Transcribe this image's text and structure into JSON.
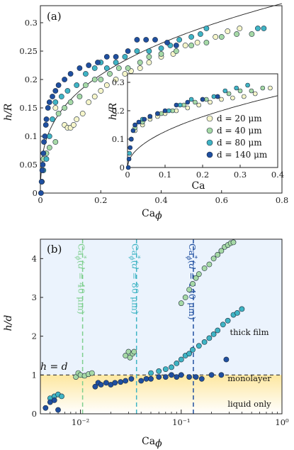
{
  "chart_data": [
    {
      "panel_label": "(a)",
      "type": "scatter",
      "xlabel": "Ca",
      "xlabel_subscript": "ϕ",
      "ylabel": "h/R",
      "xlim": [
        0,
        0.8
      ],
      "ylim": [
        0,
        0.33
      ],
      "xticks": [
        "0",
        "0.2",
        "0.4",
        "0.6",
        "0.8"
      ],
      "yticks": [
        "0",
        "0.05",
        "0.1",
        "0.15",
        "0.2",
        "0.25",
        "0.3"
      ],
      "fit_curve": {
        "type": "power",
        "a": 0.36,
        "b": 0.34
      },
      "series": [
        {
          "name": "d = 20 μm",
          "color": "#f6f5c9",
          "points": [
            [
              0.05,
              0.15
            ],
            [
              0.08,
              0.12
            ],
            [
              0.09,
              0.115
            ],
            [
              0.1,
              0.115
            ],
            [
              0.11,
              0.12
            ],
            [
              0.12,
              0.13
            ],
            [
              0.14,
              0.14
            ],
            [
              0.16,
              0.16
            ],
            [
              0.18,
              0.17
            ],
            [
              0.2,
              0.18
            ],
            [
              0.22,
              0.19
            ],
            [
              0.25,
              0.2
            ],
            [
              0.28,
              0.21
            ],
            [
              0.3,
              0.215
            ],
            [
              0.33,
              0.22
            ],
            [
              0.36,
              0.23
            ],
            [
              0.4,
              0.24
            ],
            [
              0.44,
              0.245
            ],
            [
              0.48,
              0.26
            ],
            [
              0.52,
              0.265
            ],
            [
              0.58,
              0.275
            ],
            [
              0.62,
              0.285
            ],
            [
              0.66,
              0.29
            ]
          ]
        },
        {
          "name": "d = 40 μm",
          "color": "#a6d9a6",
          "points": [
            [
              0.01,
              0.06
            ],
            [
              0.02,
              0.07
            ],
            [
              0.03,
              0.08
            ],
            [
              0.05,
              0.09
            ],
            [
              0.06,
              0.14
            ],
            [
              0.08,
              0.15
            ],
            [
              0.1,
              0.16
            ],
            [
              0.13,
              0.17
            ],
            [
              0.15,
              0.19
            ],
            [
              0.18,
              0.2
            ],
            [
              0.2,
              0.2
            ],
            [
              0.23,
              0.21
            ],
            [
              0.26,
              0.22
            ],
            [
              0.29,
              0.22
            ],
            [
              0.31,
              0.12
            ],
            [
              0.33,
              0.23
            ],
            [
              0.36,
              0.24
            ],
            [
              0.4,
              0.245
            ],
            [
              0.45,
              0.25
            ],
            [
              0.5,
              0.26
            ],
            [
              0.55,
              0.265
            ],
            [
              0.6,
              0.275
            ],
            [
              0.65,
              0.28
            ],
            [
              0.7,
              0.28
            ]
          ]
        },
        {
          "name": "d = 80 μm",
          "color": "#3fb4c4",
          "points": [
            [
              0.005,
              0.02
            ],
            [
              0.01,
              0.04
            ],
            [
              0.02,
              0.06
            ],
            [
              0.03,
              0.1
            ],
            [
              0.04,
              0.13
            ],
            [
              0.05,
              0.16
            ],
            [
              0.07,
              0.17
            ],
            [
              0.09,
              0.18
            ],
            [
              0.12,
              0.19
            ],
            [
              0.15,
              0.21
            ],
            [
              0.18,
              0.22
            ],
            [
              0.2,
              0.23
            ],
            [
              0.22,
              0.22
            ],
            [
              0.25,
              0.23
            ],
            [
              0.28,
              0.24
            ],
            [
              0.32,
              0.25
            ],
            [
              0.36,
              0.25
            ],
            [
              0.4,
              0.255
            ],
            [
              0.43,
              0.26
            ],
            [
              0.46,
              0.27
            ],
            [
              0.5,
              0.275
            ],
            [
              0.53,
              0.28
            ],
            [
              0.55,
              0.29
            ],
            [
              0.72,
              0.29
            ],
            [
              0.74,
              0.29
            ]
          ]
        },
        {
          "name": "d = 140 μm",
          "color": "#1f4fa0",
          "points": [
            [
              0.002,
              0.0
            ],
            [
              0.004,
              0.02
            ],
            [
              0.006,
              0.04
            ],
            [
              0.008,
              0.05
            ],
            [
              0.01,
              0.07
            ],
            [
              0.012,
              0.09
            ],
            [
              0.015,
              0.1
            ],
            [
              0.018,
              0.12
            ],
            [
              0.02,
              0.13
            ],
            [
              0.025,
              0.15
            ],
            [
              0.03,
              0.16
            ],
            [
              0.04,
              0.17
            ],
            [
              0.05,
              0.18
            ],
            [
              0.06,
              0.19
            ],
            [
              0.08,
              0.2
            ],
            [
              0.1,
              0.21
            ],
            [
              0.13,
              0.22
            ],
            [
              0.16,
              0.225
            ],
            [
              0.19,
              0.23
            ],
            [
              0.22,
              0.24
            ],
            [
              0.25,
              0.24
            ],
            [
              0.29,
              0.25
            ],
            [
              0.32,
              0.27
            ],
            [
              0.35,
              0.27
            ],
            [
              0.38,
              0.27
            ],
            [
              0.42,
              0.265
            ],
            [
              0.45,
              0.26
            ]
          ]
        }
      ]
    },
    {
      "panel_label": "inset",
      "type": "scatter",
      "xlabel": "Ca",
      "ylabel": "h/R",
      "xlim": [
        0,
        0.4
      ],
      "ylim": [
        0,
        0.33
      ],
      "xticks": [
        "0",
        "0.1",
        "0.2",
        "0.3",
        "0.4"
      ],
      "yticks": [
        "0",
        "0.1",
        "0.2",
        "0.3"
      ],
      "fit_curve": {
        "type": "power",
        "a": 0.4,
        "b": 0.5
      },
      "legend": [
        "d = 20 μm",
        "d = 40 μm",
        "d = 80 μm",
        "d = 140 μm"
      ],
      "series": [
        {
          "name": "d = 20 μm",
          "color": "#f6f5c9",
          "points": [
            [
              0.02,
              0.13
            ],
            [
              0.04,
              0.15
            ],
            [
              0.06,
              0.17
            ],
            [
              0.08,
              0.18
            ],
            [
              0.1,
              0.19
            ],
            [
              0.13,
              0.2
            ],
            [
              0.16,
              0.21
            ],
            [
              0.19,
              0.22
            ],
            [
              0.22,
              0.23
            ],
            [
              0.25,
              0.24
            ],
            [
              0.28,
              0.245
            ],
            [
              0.31,
              0.25
            ],
            [
              0.34,
              0.26
            ],
            [
              0.38,
              0.28
            ]
          ]
        },
        {
          "name": "d = 40 μm",
          "color": "#a6d9a6",
          "points": [
            [
              0.01,
              0.1
            ],
            [
              0.02,
              0.14
            ],
            [
              0.04,
              0.16
            ],
            [
              0.06,
              0.18
            ],
            [
              0.09,
              0.19
            ],
            [
              0.12,
              0.2
            ],
            [
              0.15,
              0.22
            ],
            [
              0.18,
              0.23
            ],
            [
              0.21,
              0.24
            ],
            [
              0.24,
              0.25
            ],
            [
              0.27,
              0.26
            ],
            [
              0.3,
              0.27
            ],
            [
              0.33,
              0.27
            ],
            [
              0.36,
              0.28
            ]
          ]
        },
        {
          "name": "d = 80 μm",
          "color": "#3fb4c4",
          "points": [
            [
              0.005,
              0.05
            ],
            [
              0.01,
              0.1
            ],
            [
              0.02,
              0.15
            ],
            [
              0.04,
              0.17
            ],
            [
              0.06,
              0.18
            ],
            [
              0.08,
              0.19
            ],
            [
              0.11,
              0.2
            ],
            [
              0.14,
              0.22
            ],
            [
              0.17,
              0.24
            ],
            [
              0.2,
              0.24
            ],
            [
              0.23,
              0.25
            ],
            [
              0.26,
              0.27
            ],
            [
              0.29,
              0.28
            ],
            [
              0.32,
              0.29
            ]
          ]
        },
        {
          "name": "d = 140 μm",
          "color": "#1f4fa0",
          "points": [
            [
              0.002,
              0.0
            ],
            [
              0.004,
              0.03
            ],
            [
              0.007,
              0.07
            ],
            [
              0.01,
              0.1
            ],
            [
              0.015,
              0.13
            ],
            [
              0.02,
              0.15
            ],
            [
              0.03,
              0.16
            ],
            [
              0.045,
              0.17
            ],
            [
              0.06,
              0.18
            ],
            [
              0.08,
              0.19
            ],
            [
              0.1,
              0.2
            ],
            [
              0.13,
              0.22
            ],
            [
              0.16,
              0.23
            ],
            [
              0.2,
              0.24
            ],
            [
              0.24,
              0.25
            ]
          ]
        }
      ]
    },
    {
      "panel_label": "(b)",
      "type": "scatter",
      "xscale": "log",
      "xlabel": "Ca",
      "xlabel_subscript": "ϕ",
      "ylabel": "h/d",
      "xlim": [
        0.004,
        1
      ],
      "ylim": [
        0,
        4.5
      ],
      "xticks": [
        "10⁻²",
        "10⁻¹",
        "10⁰"
      ],
      "yticks": [
        "0",
        "1",
        "2",
        "3",
        "4"
      ],
      "regions": {
        "thick_film": "thick film",
        "monolayer": "monolayer",
        "liquid_only": "liquid only",
        "hd_line": "h = d"
      },
      "thresholds": [
        {
          "x": 0.0105,
          "d": "40",
          "color": "#7fcf8f"
        },
        {
          "x": 0.036,
          "d": "80",
          "color": "#3fb4c4"
        },
        {
          "x": 0.132,
          "d": "140",
          "color": "#1f4fa0"
        }
      ],
      "series": [
        {
          "name": "d = 40 μm",
          "color": "#a6d9a6",
          "points": [
            [
              0.009,
              0.95
            ],
            [
              0.0095,
              1.05
            ],
            [
              0.01,
              1.0
            ],
            [
              0.011,
              0.98
            ],
            [
              0.012,
              1.02
            ],
            [
              0.013,
              1.05
            ],
            [
              0.028,
              1.5
            ],
            [
              0.03,
              1.6
            ],
            [
              0.031,
              1.45
            ],
            [
              0.033,
              1.55
            ],
            [
              0.034,
              1.6
            ],
            [
              0.1,
              2.85
            ],
            [
              0.11,
              3.0
            ],
            [
              0.12,
              3.2
            ],
            [
              0.13,
              3.35
            ],
            [
              0.14,
              3.5
            ],
            [
              0.15,
              3.6
            ],
            [
              0.17,
              3.75
            ],
            [
              0.19,
              3.85
            ],
            [
              0.21,
              4.0
            ],
            [
              0.23,
              4.1
            ],
            [
              0.25,
              4.2
            ],
            [
              0.27,
              4.3
            ],
            [
              0.29,
              4.35
            ],
            [
              0.31,
              4.4
            ],
            [
              0.33,
              4.42
            ]
          ]
        },
        {
          "name": "d = 80 μm",
          "color": "#3fb4c4",
          "points": [
            [
              0.005,
              0.4
            ],
            [
              0.0055,
              0.45
            ],
            [
              0.006,
              0.5
            ],
            [
              0.0065,
              0.45
            ],
            [
              0.05,
              1.05
            ],
            [
              0.06,
              1.1
            ],
            [
              0.07,
              1.15
            ],
            [
              0.08,
              1.2
            ],
            [
              0.09,
              1.3
            ],
            [
              0.1,
              1.4
            ],
            [
              0.11,
              1.5
            ],
            [
              0.12,
              1.55
            ],
            [
              0.13,
              1.65
            ],
            [
              0.15,
              1.75
            ],
            [
              0.17,
              1.85
            ],
            [
              0.19,
              1.95
            ],
            [
              0.21,
              2.05
            ],
            [
              0.23,
              2.15
            ],
            [
              0.26,
              2.3
            ],
            [
              0.29,
              2.4
            ],
            [
              0.33,
              2.55
            ],
            [
              0.36,
              2.6
            ],
            [
              0.4,
              2.7
            ]
          ]
        },
        {
          "name": "d = 140 μm",
          "color": "#1f4fa0",
          "points": [
            [
              0.0045,
              0.15
            ],
            [
              0.005,
              0.3
            ],
            [
              0.0055,
              0.35
            ],
            [
              0.006,
              0.1
            ],
            [
              0.014,
              0.7
            ],
            [
              0.015,
              0.8
            ],
            [
              0.016,
              0.75
            ],
            [
              0.018,
              0.8
            ],
            [
              0.02,
              0.75
            ],
            [
              0.022,
              0.8
            ],
            [
              0.025,
              0.82
            ],
            [
              0.028,
              0.85
            ],
            [
              0.032,
              0.9
            ],
            [
              0.04,
              0.85
            ],
            [
              0.045,
              0.9
            ],
            [
              0.05,
              0.9
            ],
            [
              0.06,
              0.95
            ],
            [
              0.07,
              0.95
            ],
            [
              0.08,
              1.0
            ],
            [
              0.09,
              0.95
            ],
            [
              0.1,
              1.0
            ],
            [
              0.12,
              0.95
            ],
            [
              0.14,
              0.95
            ],
            [
              0.16,
              0.9
            ],
            [
              0.2,
              1.0
            ],
            [
              0.25,
              1.0
            ],
            [
              0.28,
              1.4
            ]
          ]
        }
      ]
    }
  ]
}
